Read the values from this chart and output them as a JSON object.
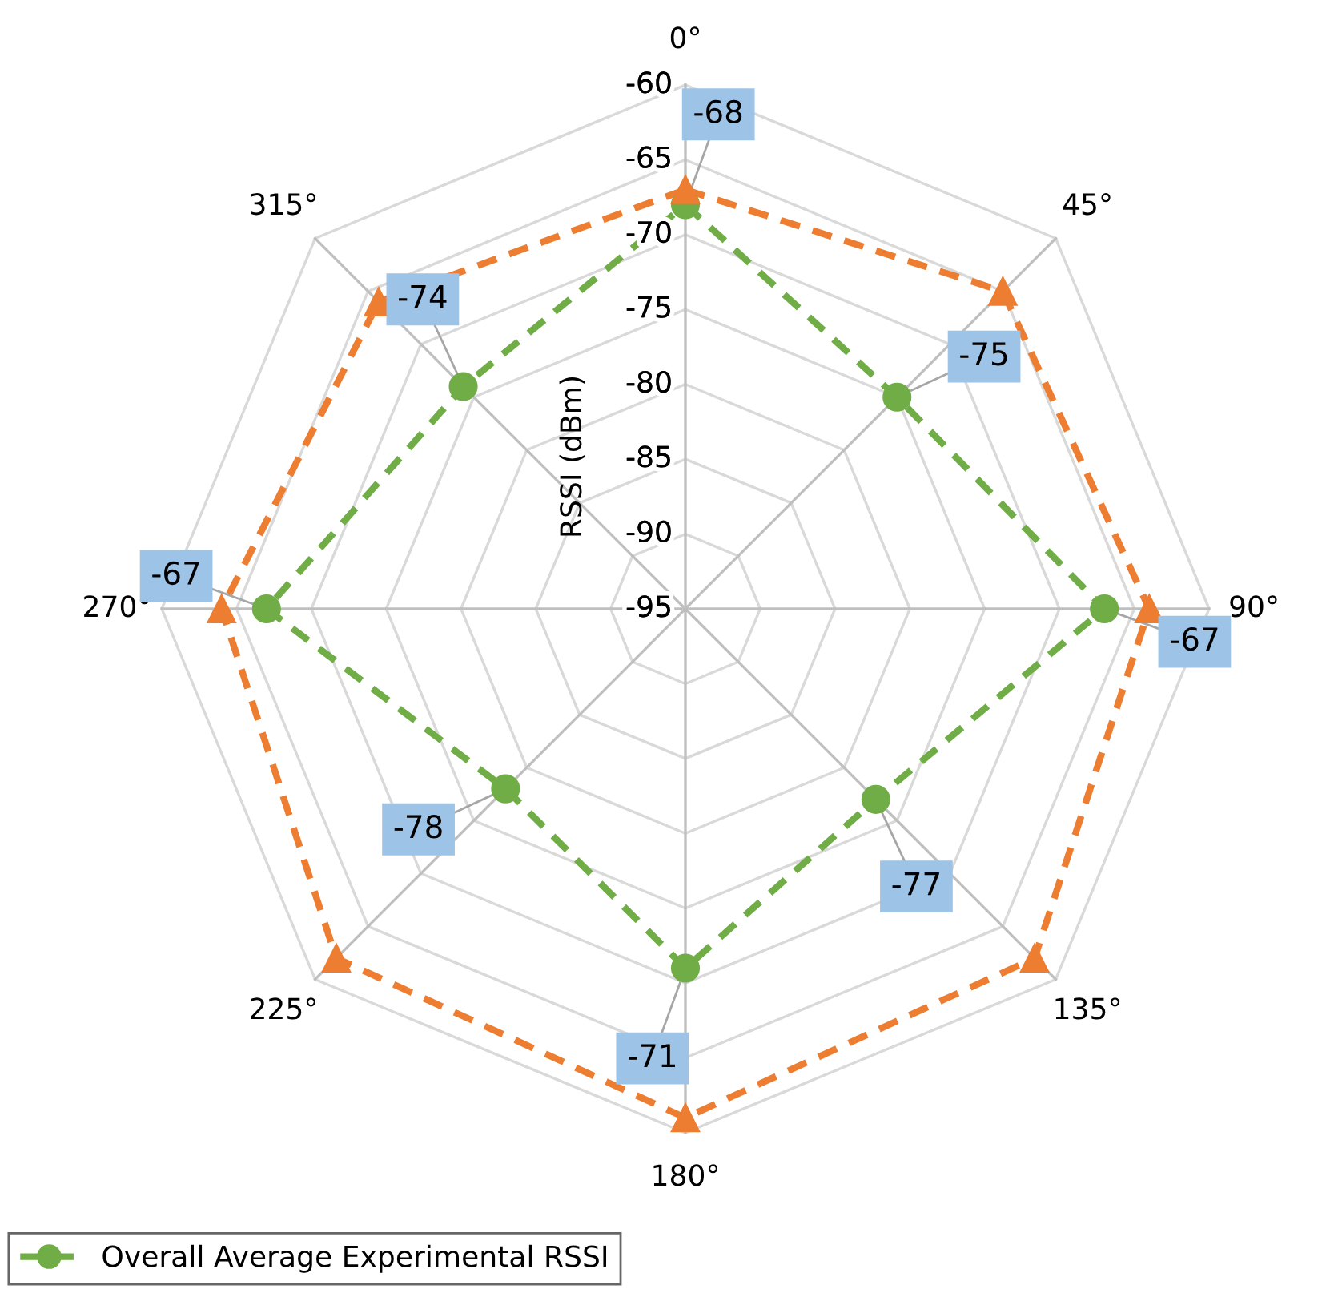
{
  "chart_data": {
    "type": "radar",
    "ylabel": "RSSI (dBm)",
    "categories": [
      "0°",
      "45°",
      "90°",
      "135°",
      "180°",
      "225°",
      "270°",
      "315°"
    ],
    "ylim": [
      -95,
      -60
    ],
    "yticks": [
      -60,
      -65,
      -70,
      -75,
      -80,
      -85,
      -90,
      -95
    ],
    "grid": true,
    "legend": "bottom left",
    "line_style": "dashed",
    "series": [
      {
        "color": "#ed7d31",
        "marker": "triangle",
        "values": [
          -67,
          -65,
          -64,
          -62,
          -61,
          -62,
          -64,
          -66
        ]
      },
      {
        "name": "Overall Average Experimental RSSI",
        "color": "#70ad47",
        "marker": "circle",
        "values": [
          -68,
          -75,
          -67,
          -77,
          -71,
          -78,
          -67,
          -74
        ],
        "value_labels": [
          "-68",
          "-75",
          "-67",
          "-77",
          "-71",
          "-78",
          "-67",
          "-74"
        ]
      }
    ]
  }
}
